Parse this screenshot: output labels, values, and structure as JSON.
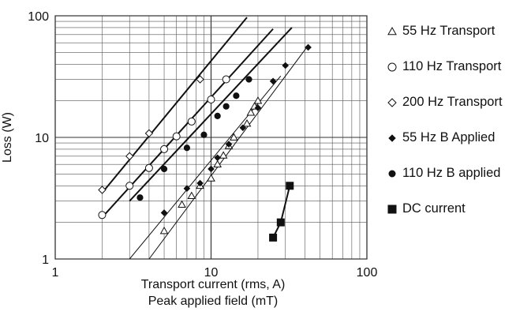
{
  "chart_data": {
    "type": "scatter",
    "x_scale": "log",
    "y_scale": "log",
    "xlim": [
      1,
      100
    ],
    "ylim": [
      1,
      100
    ],
    "x_ticks": [
      "1",
      "10",
      "100"
    ],
    "y_ticks": [
      "1",
      "10",
      "100"
    ],
    "xlabel_line1": "Transport current (rms, A)",
    "xlabel_line2": "Peak applied field (mT)",
    "ylabel": "Loss (W)",
    "grid": true,
    "legend_placement": "right",
    "series": [
      {
        "name": "55 Hz Transport",
        "marker": "triangle-open",
        "x": [
          5,
          6.5,
          7.5,
          8.5,
          10,
          11,
          12,
          13,
          14,
          17,
          18,
          19,
          20
        ],
        "y": [
          1.7,
          2.8,
          3.3,
          4.0,
          4.6,
          6.0,
          7.1,
          8.5,
          10.0,
          13.0,
          16.0,
          18.0,
          20.0
        ]
      },
      {
        "name": "110 Hz Transport",
        "marker": "circle-open",
        "x": [
          2,
          3,
          4,
          5,
          6,
          7.5,
          10,
          12.5
        ],
        "y": [
          2.3,
          4.0,
          5.6,
          8.0,
          10.2,
          13.5,
          20.5,
          30.0
        ]
      },
      {
        "name": "200 Hz Transport",
        "marker": "diamond-open",
        "x": [
          2,
          3,
          4,
          8.5
        ],
        "y": [
          3.7,
          7.0,
          10.8,
          30.0
        ]
      },
      {
        "name": "55 Hz B Applied",
        "marker": "diamond-filled",
        "x": [
          5,
          7,
          8.5,
          10,
          11,
          13,
          16,
          20,
          25,
          30,
          42
        ],
        "y": [
          2.4,
          3.8,
          4.2,
          5.5,
          6.8,
          8.8,
          12.0,
          17.5,
          29.0,
          39.0,
          55.0
        ]
      },
      {
        "name": "110 Hz B applied",
        "marker": "circle-filled",
        "x": [
          3.5,
          5,
          7,
          9,
          11,
          12.5,
          14.5,
          17.5
        ],
        "y": [
          3.2,
          5.5,
          8.2,
          10.5,
          15.0,
          18.0,
          22.0,
          30.0
        ]
      },
      {
        "name": "DC current",
        "marker": "square-filled",
        "x": [
          25,
          28,
          32
        ],
        "y": [
          1.5,
          2.0,
          4.0
        ]
      }
    ],
    "fit_lines": [
      {
        "kind": "thick",
        "x": [
          2,
          17
        ],
        "y": [
          3.5,
          97
        ]
      },
      {
        "kind": "thick",
        "x": [
          2,
          25
        ],
        "y": [
          2.2,
          78
        ]
      },
      {
        "kind": "thick",
        "x": [
          3,
          33
        ],
        "y": [
          3.0,
          80
        ]
      },
      {
        "kind": "thin",
        "x": [
          3,
          28
        ],
        "y": [
          1.0,
          32
        ]
      },
      {
        "kind": "thin",
        "x": [
          4,
          42
        ],
        "y": [
          1.0,
          57
        ]
      }
    ],
    "dc_connect": true
  }
}
